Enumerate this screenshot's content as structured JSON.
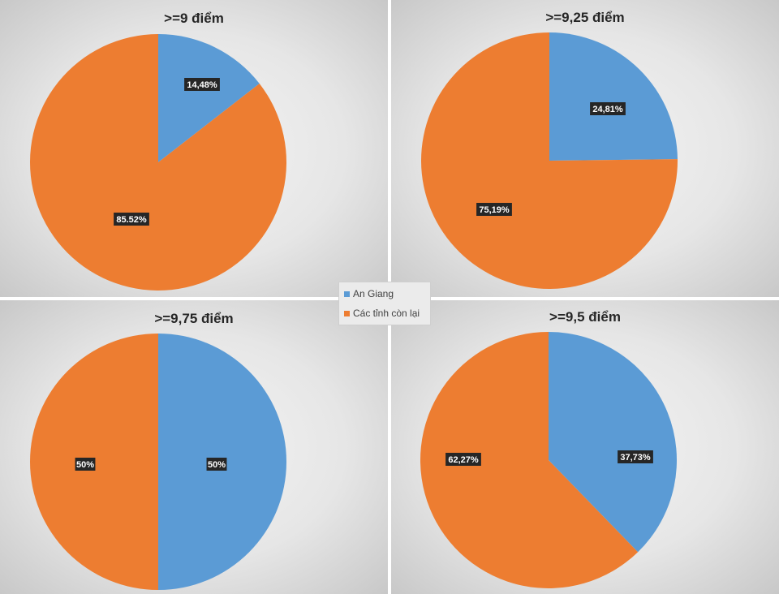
{
  "colors": {
    "an_giang": "#5B9BD5",
    "other": "#ED7D31",
    "label_bg": "#262626",
    "label_text": "#ffffff"
  },
  "legend": {
    "items": [
      {
        "label": "An Giang",
        "color": "#5B9BD5"
      },
      {
        "label": "Các tỉnh còn lại",
        "color": "#ED7D31"
      }
    ]
  },
  "chart_data": [
    {
      "type": "pie",
      "title": ">=9 điểm",
      "categories": [
        "An Giang",
        "Các tỉnh còn lại"
      ],
      "values": [
        14.48,
        85.52
      ],
      "labels": [
        "14,48%",
        "85.52%"
      ]
    },
    {
      "type": "pie",
      "title": ">=9,25 điểm",
      "categories": [
        "An Giang",
        "Các tỉnh còn lại"
      ],
      "values": [
        24.81,
        75.19
      ],
      "labels": [
        "24,81%",
        "75,19%"
      ]
    },
    {
      "type": "pie",
      "title": ">=9,75 điểm",
      "categories": [
        "An Giang",
        "Các tỉnh còn lại"
      ],
      "values": [
        50,
        50
      ],
      "labels": [
        "50%",
        "50%"
      ]
    },
    {
      "type": "pie",
      "title": ">=9,5 điểm",
      "categories": [
        "An Giang",
        "Các tỉnh còn lại"
      ],
      "values": [
        37.73,
        62.27
      ],
      "labels": [
        "37,73%",
        "62,27%"
      ]
    }
  ]
}
